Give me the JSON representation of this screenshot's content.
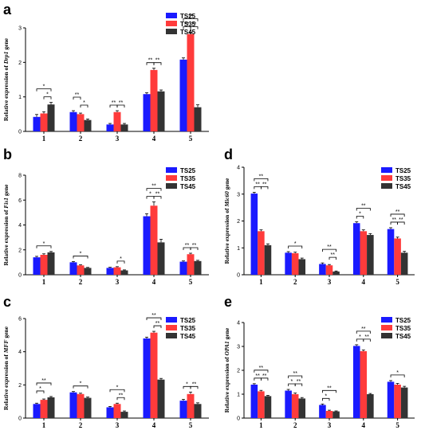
{
  "colors": {
    "TS25": "#1a1aff",
    "TS35": "#ff3b3b",
    "TS45": "#333333"
  },
  "legend": [
    "TS25",
    "TS35",
    "TS45"
  ],
  "chart_data": [
    {
      "panel": "a",
      "type": "bar",
      "ylabel": "Relative expression of Drp1 gene",
      "ylabel_italic": "Drp1",
      "categories": [
        "1",
        "2",
        "3",
        "4",
        "5"
      ],
      "ylim": [
        0,
        3
      ],
      "yticks": [
        0,
        1,
        2,
        3
      ],
      "series": [
        {
          "name": "TS25",
          "values": [
            0.42,
            0.56,
            0.2,
            1.08,
            2.08
          ]
        },
        {
          "name": "TS35",
          "values": [
            0.52,
            0.5,
            0.56,
            1.78,
            2.82
          ]
        },
        {
          "name": "TS45",
          "values": [
            0.78,
            0.33,
            0.2,
            1.16,
            0.7
          ]
        }
      ],
      "errors": [
        [
          0.07,
          0.04,
          0.03,
          0.04,
          0.05
        ],
        [
          0.05,
          0.03,
          0.04,
          0.05,
          0.05
        ],
        [
          0.06,
          0.03,
          0.03,
          0.04,
          0.07
        ]
      ],
      "significance": [
        {
          "cat": 0,
          "from": 0,
          "to": 2,
          "label": "*",
          "level": 1
        },
        {
          "cat": 0,
          "from": 1,
          "to": 2,
          "label": "*",
          "level": 0
        },
        {
          "cat": 1,
          "from": 0,
          "to": 1,
          "label": "**",
          "level": 1
        },
        {
          "cat": 1,
          "from": 1,
          "to": 2,
          "label": "*",
          "level": 0
        },
        {
          "cat": 2,
          "from": 0,
          "to": 1,
          "label": "**",
          "level": 0
        },
        {
          "cat": 2,
          "from": 1,
          "to": 2,
          "label": "**",
          "level": 0
        },
        {
          "cat": 3,
          "from": 0,
          "to": 1,
          "label": "**",
          "level": 0
        },
        {
          "cat": 3,
          "from": 1,
          "to": 2,
          "label": "**",
          "level": 0
        },
        {
          "cat": 4,
          "from": 0,
          "to": 2,
          "label": "**",
          "level": 1
        },
        {
          "cat": 4,
          "from": 0,
          "to": 1,
          "label": "**",
          "level": 0
        },
        {
          "cat": 4,
          "from": 1,
          "to": 2,
          "label": "**",
          "level": 0
        }
      ]
    },
    {
      "panel": "b",
      "type": "bar",
      "ylabel": "Relative expression of Fis1 gene",
      "ylabel_italic": "Fis1",
      "categories": [
        "1",
        "2",
        "3",
        "4",
        "5"
      ],
      "ylim": [
        0,
        8
      ],
      "yticks": [
        0,
        2,
        4,
        6,
        8
      ],
      "series": [
        {
          "name": "TS25",
          "values": [
            1.4,
            1.0,
            0.55,
            4.7,
            1.05
          ]
        },
        {
          "name": "TS35",
          "values": [
            1.6,
            0.75,
            0.6,
            5.55,
            1.65
          ]
        },
        {
          "name": "TS45",
          "values": [
            1.8,
            0.55,
            0.35,
            2.6,
            1.1
          ]
        }
      ],
      "errors": [
        [
          0.08,
          0.06,
          0.05,
          0.2,
          0.06
        ],
        [
          0.08,
          0.05,
          0.05,
          0.3,
          0.08
        ],
        [
          0.07,
          0.04,
          0.04,
          0.25,
          0.06
        ]
      ],
      "significance": [
        {
          "cat": 0,
          "from": 0,
          "to": 2,
          "label": "*",
          "level": 0
        },
        {
          "cat": 1,
          "from": 0,
          "to": 2,
          "label": "*",
          "level": 0
        },
        {
          "cat": 2,
          "from": 1,
          "to": 2,
          "label": "*",
          "level": 0
        },
        {
          "cat": 3,
          "from": 0,
          "to": 2,
          "label": "**",
          "level": 1
        },
        {
          "cat": 3,
          "from": 0,
          "to": 1,
          "label": "*",
          "level": 0
        },
        {
          "cat": 3,
          "from": 1,
          "to": 2,
          "label": "**",
          "level": 0
        },
        {
          "cat": 4,
          "from": 0,
          "to": 1,
          "label": "**",
          "level": 0
        },
        {
          "cat": 4,
          "from": 1,
          "to": 2,
          "label": "**",
          "level": 0
        }
      ]
    },
    {
      "panel": "c",
      "type": "bar",
      "ylabel": "Relative expression of MFF gene",
      "ylabel_italic": "MFF",
      "categories": [
        "1",
        "2",
        "3",
        "4",
        "5"
      ],
      "ylim": [
        0,
        6
      ],
      "yticks": [
        0,
        2,
        4,
        6
      ],
      "series": [
        {
          "name": "TS25",
          "values": [
            0.85,
            1.55,
            0.65,
            4.8,
            1.05
          ]
        },
        {
          "name": "TS35",
          "values": [
            1.1,
            1.45,
            0.85,
            5.15,
            1.45
          ]
        },
        {
          "name": "TS45",
          "values": [
            1.25,
            1.22,
            0.38,
            2.32,
            0.85
          ]
        }
      ],
      "errors": [
        [
          0.05,
          0.05,
          0.05,
          0.08,
          0.08
        ],
        [
          0.05,
          0.05,
          0.05,
          0.08,
          0.12
        ],
        [
          0.05,
          0.05,
          0.05,
          0.07,
          0.07
        ]
      ],
      "significance": [
        {
          "cat": 0,
          "from": 0,
          "to": 1,
          "label": "*",
          "level": 0
        },
        {
          "cat": 0,
          "from": 0,
          "to": 2,
          "label": "**",
          "level": 1
        },
        {
          "cat": 1,
          "from": 0,
          "to": 2,
          "label": "*",
          "level": 0
        },
        {
          "cat": 2,
          "from": 0,
          "to": 2,
          "label": "*",
          "level": 1
        },
        {
          "cat": 2,
          "from": 1,
          "to": 2,
          "label": "**",
          "level": 0
        },
        {
          "cat": 3,
          "from": 0,
          "to": 2,
          "label": "**",
          "level": 1
        },
        {
          "cat": 3,
          "from": 1,
          "to": 2,
          "label": "**",
          "level": 0
        },
        {
          "cat": 4,
          "from": 0,
          "to": 1,
          "label": "*",
          "level": 0
        },
        {
          "cat": 4,
          "from": 1,
          "to": 2,
          "label": "**",
          "level": 0
        }
      ]
    },
    {
      "panel": "d",
      "type": "bar",
      "ylabel": "Relative expression of Mic60 gene",
      "ylabel_italic": "Mic60",
      "categories": [
        "1",
        "2",
        "3",
        "4",
        "5"
      ],
      "ylim": [
        0,
        4
      ],
      "yticks": [
        0,
        1,
        2,
        3,
        4
      ],
      "series": [
        {
          "name": "TS25",
          "values": [
            3.02,
            0.82,
            0.4,
            1.92,
            1.7
          ]
        },
        {
          "name": "TS35",
          "values": [
            1.62,
            0.8,
            0.35,
            1.62,
            1.35
          ]
        },
        {
          "name": "TS45",
          "values": [
            1.1,
            0.58,
            0.12,
            1.48,
            0.82
          ]
        }
      ],
      "errors": [
        [
          0.05,
          0.04,
          0.04,
          0.05,
          0.05
        ],
        [
          0.05,
          0.04,
          0.03,
          0.05,
          0.05
        ],
        [
          0.05,
          0.04,
          0.02,
          0.05,
          0.05
        ]
      ],
      "significance": [
        {
          "cat": 0,
          "from": 0,
          "to": 2,
          "label": "**",
          "level": 1
        },
        {
          "cat": 0,
          "from": 0,
          "to": 1,
          "label": "**",
          "level": 0
        },
        {
          "cat": 0,
          "from": 1,
          "to": 2,
          "label": "**",
          "level": 0
        },
        {
          "cat": 1,
          "from": 0,
          "to": 2,
          "label": "*",
          "level": 0
        },
        {
          "cat": 2,
          "from": 0,
          "to": 2,
          "label": "**",
          "level": 1
        },
        {
          "cat": 2,
          "from": 1,
          "to": 2,
          "label": "**",
          "level": 0
        },
        {
          "cat": 3,
          "from": 0,
          "to": 2,
          "label": "**",
          "level": 1
        },
        {
          "cat": 3,
          "from": 0,
          "to": 1,
          "label": "*",
          "level": 0
        },
        {
          "cat": 4,
          "from": 0,
          "to": 2,
          "label": "**",
          "level": 1
        },
        {
          "cat": 4,
          "from": 0,
          "to": 1,
          "label": "**",
          "level": 0
        },
        {
          "cat": 4,
          "from": 1,
          "to": 2,
          "label": "**",
          "level": 0
        }
      ]
    },
    {
      "panel": "e",
      "type": "bar",
      "ylabel": "Relative expression of OPA1 gene",
      "ylabel_italic": "OPA1",
      "categories": [
        "1",
        "2",
        "3",
        "4",
        "5"
      ],
      "ylim": [
        0,
        4
      ],
      "yticks": [
        0,
        1,
        2,
        3,
        4
      ],
      "series": [
        {
          "name": "TS25",
          "values": [
            1.4,
            1.15,
            0.55,
            3.02,
            1.52
          ]
        },
        {
          "name": "TS35",
          "values": [
            1.12,
            1.0,
            0.3,
            2.8,
            1.4
          ]
        },
        {
          "name": "TS45",
          "values": [
            0.92,
            0.82,
            0.28,
            1.0,
            1.28
          ]
        }
      ],
      "errors": [
        [
          0.04,
          0.05,
          0.04,
          0.05,
          0.05
        ],
        [
          0.04,
          0.05,
          0.03,
          0.05,
          0.05
        ],
        [
          0.03,
          0.04,
          0.02,
          0.03,
          0.05
        ]
      ],
      "significance": [
        {
          "cat": 0,
          "from": 0,
          "to": 2,
          "label": "**",
          "level": 1
        },
        {
          "cat": 0,
          "from": 0,
          "to": 1,
          "label": "**",
          "level": 0
        },
        {
          "cat": 0,
          "from": 1,
          "to": 2,
          "label": "**",
          "level": 0
        },
        {
          "cat": 1,
          "from": 0,
          "to": 2,
          "label": "**",
          "level": 1
        },
        {
          "cat": 1,
          "from": 0,
          "to": 1,
          "label": "*",
          "level": 0
        },
        {
          "cat": 1,
          "from": 1,
          "to": 2,
          "label": "**",
          "level": 0
        },
        {
          "cat": 2,
          "from": 0,
          "to": 2,
          "label": "**",
          "level": 1
        },
        {
          "cat": 2,
          "from": 0,
          "to": 1,
          "label": "*",
          "level": 0
        },
        {
          "cat": 3,
          "from": 0,
          "to": 2,
          "label": "**",
          "level": 1
        },
        {
          "cat": 3,
          "from": 0,
          "to": 1,
          "label": "*",
          "level": 0
        },
        {
          "cat": 3,
          "from": 1,
          "to": 2,
          "label": "**",
          "level": 0
        },
        {
          "cat": 4,
          "from": 0,
          "to": 2,
          "label": "*",
          "level": 0
        }
      ]
    }
  ]
}
